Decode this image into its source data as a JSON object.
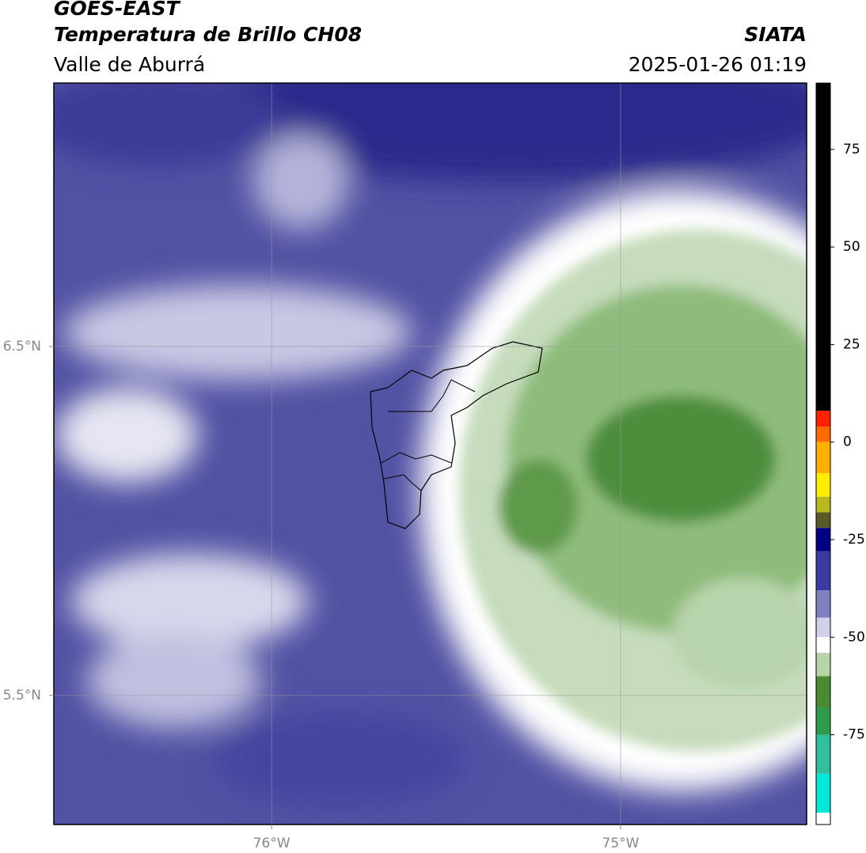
{
  "header": {
    "title": "GOES-EAST",
    "subtitle": "Temperatura de Brillo CH08",
    "region": "Valle de Aburrá",
    "source": "SIATA",
    "datetime": "2025-01-26 01:19"
  },
  "map": {
    "xlim": [
      -76.624,
      -74.467
    ],
    "ylim": [
      5.13,
      7.255
    ],
    "xticks": [
      {
        "value": -76,
        "label": "76°W"
      },
      {
        "value": -75,
        "label": "75°W"
      }
    ],
    "yticks": [
      {
        "value": 6.5,
        "label": "6.5°N"
      },
      {
        "value": 5.5,
        "label": "5.5°N"
      }
    ],
    "grid": true
  },
  "colorbar": {
    "lim": [
      -98,
      92
    ],
    "ticks": [
      75,
      50,
      25,
      0,
      -25,
      -50,
      -75
    ],
    "segments": [
      {
        "range": [
          8,
          92
        ],
        "color": "#000000"
      },
      {
        "range": [
          4,
          8
        ],
        "color": "#ff2000"
      },
      {
        "range": [
          0,
          4
        ],
        "color": "#ff6a00"
      },
      {
        "range": [
          -8,
          0
        ],
        "color": "#ffb000"
      },
      {
        "range": [
          -14,
          -8
        ],
        "color": "#ffee00"
      },
      {
        "range": [
          -18,
          -14
        ],
        "color": "#b8b820"
      },
      {
        "range": [
          -22,
          -18
        ],
        "color": "#5a5a28"
      },
      {
        "range": [
          -28,
          -22
        ],
        "color": "#000080"
      },
      {
        "range": [
          -38,
          -28
        ],
        "color": "#3a3aa0"
      },
      {
        "range": [
          -45,
          -38
        ],
        "color": "#8080c0"
      },
      {
        "range": [
          -50,
          -45
        ],
        "color": "#d0d0e8"
      },
      {
        "range": [
          -54,
          -50
        ],
        "color": "#ffffff"
      },
      {
        "range": [
          -60,
          -54
        ],
        "color": "#b8d4a8"
      },
      {
        "range": [
          -68,
          -60
        ],
        "color": "#4a8a30"
      },
      {
        "range": [
          -75,
          -68
        ],
        "color": "#2e9a4a"
      },
      {
        "range": [
          -85,
          -75
        ],
        "color": "#30c0a0"
      },
      {
        "range": [
          -95,
          -85
        ],
        "color": "#00e8d8"
      },
      {
        "range": [
          -98,
          -95
        ],
        "color": "#ffffff"
      }
    ]
  }
}
